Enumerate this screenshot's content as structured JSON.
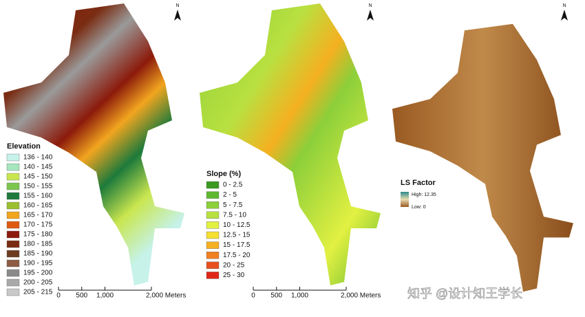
{
  "panels": [
    {
      "legend_title": "Elevation",
      "classes": [
        {
          "label": "136 - 140",
          "color": "#c6f2ea"
        },
        {
          "label": "140 - 145",
          "color": "#a6e6bf"
        },
        {
          "label": "145 - 150",
          "color": "#c9e64f"
        },
        {
          "label": "150 - 155",
          "color": "#7cc64e"
        },
        {
          "label": "155 - 160",
          "color": "#1d7a3b"
        },
        {
          "label": "160 - 165",
          "color": "#9cbf2f"
        },
        {
          "label": "165 - 170",
          "color": "#f2a51f"
        },
        {
          "label": "170 - 175",
          "color": "#e05a12"
        },
        {
          "label": "175 - 180",
          "color": "#8c1a0b"
        },
        {
          "label": "180 - 185",
          "color": "#7a2c12"
        },
        {
          "label": "185 - 190",
          "color": "#6d3b20"
        },
        {
          "label": "190 - 195",
          "color": "#8c5c43"
        },
        {
          "label": "195 - 200",
          "color": "#8a8a8a"
        },
        {
          "label": "200 - 205",
          "color": "#a9a9a9"
        },
        {
          "label": "205 - 215",
          "color": "#c9c9c9"
        }
      ],
      "scale": [
        "0",
        "500",
        "1,000",
        "2,000 Meters"
      ]
    },
    {
      "legend_title": "Slope (%)",
      "classes": [
        {
          "label": "0 - 2.5",
          "color": "#3a9a20"
        },
        {
          "label": "2 - 5",
          "color": "#5db830"
        },
        {
          "label": "5 - 7.5",
          "color": "#8ccf3a"
        },
        {
          "label": "7.5 - 10",
          "color": "#b9e040"
        },
        {
          "label": "10 - 12.5",
          "color": "#e2f042"
        },
        {
          "label": "12.5 - 15",
          "color": "#f5df30"
        },
        {
          "label": "15 - 17.5",
          "color": "#f5b020"
        },
        {
          "label": "17.5 - 20",
          "color": "#f08020"
        },
        {
          "label": "20 - 25",
          "color": "#e85020"
        },
        {
          "label": "25 - 30",
          "color": "#e02818"
        }
      ],
      "scale": [
        "0",
        "500",
        "1,000",
        "2,000 Meters"
      ]
    },
    {
      "legend_title": "LS Factor",
      "high": "High: 12.35",
      "low": "Low: 0"
    }
  ],
  "north": "N",
  "watermark": "知乎 @设计知王学长"
}
